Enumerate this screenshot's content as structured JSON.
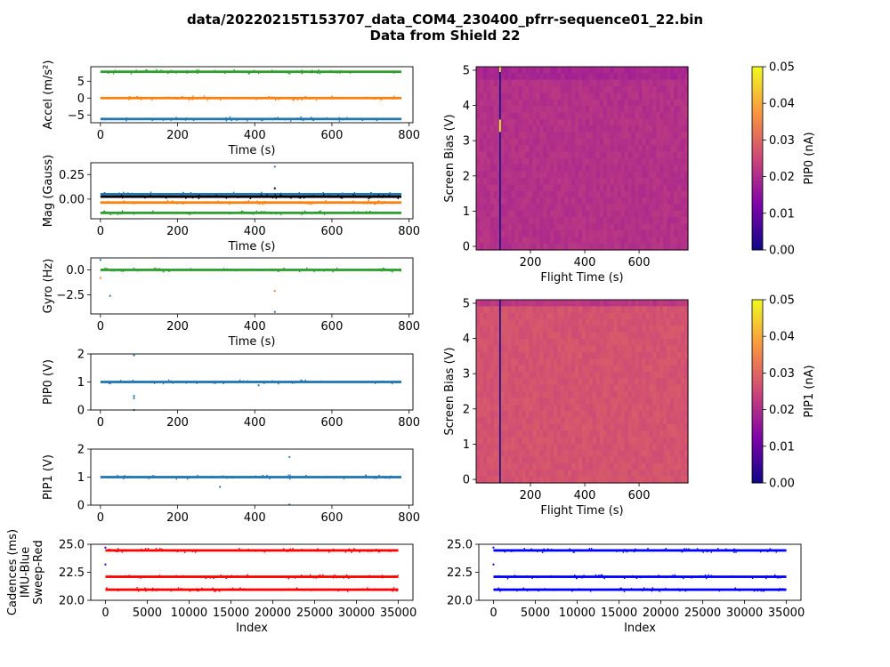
{
  "figure": {
    "title_line1": "data/20220215T153707_data_COM4_230400_pfrr-sequence01_22.bin",
    "title_line2": "Data from Shield 22"
  },
  "colors": {
    "c0": "#1f77b4",
    "c1": "#ff7f0e",
    "c2": "#2ca02c",
    "red": "#ff0000",
    "blue": "#0000ff",
    "dark": "#000000"
  },
  "chart_data": [
    {
      "id": "accel",
      "type": "scatter",
      "title": "",
      "xlabel": "Time (s)",
      "ylabel": "Accel (m/s²)",
      "xlim": [
        -25,
        810
      ],
      "ylim": [
        -7.3,
        9.3
      ],
      "xticks": [
        0,
        200,
        400,
        600,
        800
      ],
      "yticks": [
        -5,
        0,
        5
      ],
      "series": [
        {
          "color": "c0",
          "level": -6.2,
          "x_range": [
            0,
            780
          ]
        },
        {
          "color": "c1",
          "level": 0.0,
          "x_range": [
            0,
            780
          ]
        },
        {
          "color": "c2",
          "level": 7.8,
          "x_range": [
            0,
            780
          ]
        }
      ],
      "points": [
        {
          "x": 500,
          "y": -0.6,
          "color": "c1"
        },
        {
          "x": 385,
          "y": 7.3,
          "color": "c2"
        },
        {
          "x": 398,
          "y": 8.1,
          "color": "c2"
        }
      ]
    },
    {
      "id": "mag",
      "type": "scatter",
      "title": "",
      "xlabel": "Time (s)",
      "ylabel": "Mag (Gauss)",
      "xlim": [
        -25,
        810
      ],
      "ylim": [
        -0.2,
        0.37
      ],
      "xticks": [
        0,
        200,
        400,
        600,
        800
      ],
      "yticks": [
        0.0,
        0.25
      ],
      "ytick_labels": [
        "0.00",
        "0.25"
      ],
      "series": [
        {
          "color": "c0",
          "level": 0.05,
          "x_range": [
            0,
            780
          ]
        },
        {
          "color": "dark",
          "level": 0.025,
          "x_range": [
            0,
            780
          ]
        },
        {
          "color": "c1",
          "level": -0.035,
          "x_range": [
            0,
            780
          ]
        },
        {
          "color": "c2",
          "level": -0.14,
          "x_range": [
            0,
            780
          ]
        }
      ],
      "points": [
        {
          "x": 452,
          "y": 0.33,
          "color": "c0"
        },
        {
          "x": 452,
          "y": 0.11,
          "color": "dark"
        }
      ]
    },
    {
      "id": "gyro",
      "type": "scatter",
      "title": "",
      "xlabel": "Time (s)",
      "ylabel": "Gyro (Hz)",
      "xlim": [
        -25,
        810
      ],
      "ylim": [
        -4.4,
        1.2
      ],
      "xticks": [
        0,
        200,
        400,
        600,
        800
      ],
      "yticks": [
        -2.5,
        0.0
      ],
      "ytick_labels": [
        "−2.5",
        "0.0"
      ],
      "series": [
        {
          "color": "c2",
          "level": 0.0,
          "x_range": [
            0,
            780
          ]
        }
      ],
      "points": [
        {
          "x": 0,
          "y": 1.0,
          "color": "c0"
        },
        {
          "x": 0,
          "y": -0.8,
          "color": "c1"
        },
        {
          "x": 25,
          "y": -2.6,
          "color": "c0"
        },
        {
          "x": 452,
          "y": -2.1,
          "color": "c1"
        },
        {
          "x": 452,
          "y": -4.2,
          "color": "c0"
        }
      ]
    },
    {
      "id": "pip0v",
      "type": "scatter",
      "title": "",
      "xlabel": "",
      "ylabel": "PIP0 (V)",
      "xlim": [
        -25,
        810
      ],
      "ylim": [
        0,
        2
      ],
      "xticks": [
        0,
        200,
        400,
        600,
        800
      ],
      "yticks": [
        0,
        1,
        2
      ],
      "series": [
        {
          "color": "c0",
          "level": 1.0,
          "x_range": [
            0,
            780
          ]
        }
      ],
      "points": [
        {
          "x": 87,
          "y": 1.95,
          "color": "c0"
        },
        {
          "x": 87,
          "y": 0.5,
          "color": "c0"
        },
        {
          "x": 87,
          "y": 0.42,
          "color": "c0"
        },
        {
          "x": 87,
          "y": 0.0,
          "color": "c0"
        },
        {
          "x": 410,
          "y": 0.88,
          "color": "c0"
        }
      ]
    },
    {
      "id": "pip1v",
      "type": "scatter",
      "title": "",
      "xlabel": "",
      "ylabel": "PIP1 (V)",
      "xlim": [
        -25,
        810
      ],
      "ylim": [
        0,
        2
      ],
      "xticks": [
        0,
        200,
        400,
        600,
        800
      ],
      "yticks": [
        0,
        1,
        2
      ],
      "series": [
        {
          "color": "c0",
          "level": 1.0,
          "x_range": [
            0,
            780
          ]
        }
      ],
      "points": [
        {
          "x": 490,
          "y": 1.72,
          "color": "c0"
        },
        {
          "x": 310,
          "y": 0.65,
          "color": "c0"
        },
        {
          "x": 490,
          "y": 0.02,
          "color": "c0"
        }
      ]
    },
    {
      "id": "cad_red",
      "type": "scatter",
      "title": "",
      "xlabel": "Index",
      "ylabel_lines": [
        "Cadences (ms)",
        "IMU-Blue",
        "Sweep-Red"
      ],
      "xlim": [
        -1750,
        36750
      ],
      "ylim": [
        20,
        25
      ],
      "xticks": [
        0,
        5000,
        10000,
        15000,
        20000,
        25000,
        30000,
        35000
      ],
      "yticks": [
        20.0,
        22.5,
        25.0
      ],
      "ytick_labels": [
        "20.0",
        "22.5",
        "25.0"
      ],
      "series": [
        {
          "color": "red",
          "level": 24.45,
          "x_range": [
            0,
            35000
          ]
        },
        {
          "color": "red",
          "level": 22.1,
          "x_range": [
            0,
            35000
          ]
        },
        {
          "color": "red",
          "level": 20.95,
          "x_range": [
            0,
            35000
          ]
        }
      ],
      "points": [
        {
          "x": 0,
          "y": 24.7,
          "color": "blue"
        },
        {
          "x": 0,
          "y": 23.2,
          "color": "blue"
        }
      ]
    },
    {
      "id": "cad_blue",
      "type": "scatter",
      "title": "",
      "xlabel": "Index",
      "ylabel": "",
      "xlim": [
        -1750,
        36750
      ],
      "ylim": [
        20,
        25
      ],
      "xticks": [
        0,
        5000,
        10000,
        15000,
        20000,
        25000,
        30000,
        35000
      ],
      "yticks": [
        20.0,
        22.5,
        25.0
      ],
      "ytick_labels": [
        "20.0",
        "22.5",
        "25.0"
      ],
      "series": [
        {
          "color": "blue",
          "level": 24.45,
          "x_range": [
            0,
            35000
          ]
        },
        {
          "color": "blue",
          "level": 22.1,
          "x_range": [
            0,
            35000
          ]
        },
        {
          "color": "blue",
          "level": 20.95,
          "x_range": [
            0,
            35000
          ]
        }
      ],
      "points": [
        {
          "x": 0,
          "y": 24.7,
          "color": "blue"
        },
        {
          "x": 0,
          "y": 23.2,
          "color": "blue"
        }
      ]
    },
    {
      "id": "heat0",
      "type": "heatmap",
      "xlabel": "Flight Time (s)",
      "ylabel": "Screen Bias (V)",
      "colorbar_label": "PIP0 (nA)",
      "colormap": "plasma",
      "xlim": [
        0,
        780
      ],
      "ylim": [
        -0.1,
        5.1
      ],
      "xticks": [
        200,
        400,
        600
      ],
      "yticks": [
        0,
        1,
        2,
        3,
        4,
        5
      ],
      "clim": [
        0,
        0.05
      ],
      "cticks": [
        0.0,
        0.01,
        0.02,
        0.03,
        0.04,
        0.05
      ],
      "ctick_labels": [
        "0.00",
        "0.01",
        "0.02",
        "0.03",
        "0.04",
        "0.05"
      ],
      "base_value": 0.021,
      "top_band_value": 0.019,
      "top_band_from": 4.7,
      "dark_column_x": 88,
      "bright_spots": [
        {
          "x": 88,
          "y_from": 3.25,
          "y_to": 3.6
        },
        {
          "x": 88,
          "y_from": 4.95,
          "y_to": 5.1
        }
      ]
    },
    {
      "id": "heat1",
      "type": "heatmap",
      "xlabel": "Flight Time (s)",
      "ylabel": "Screen Bias (V)",
      "colorbar_label": "PIP1 (nA)",
      "colormap": "plasma",
      "xlim": [
        0,
        780
      ],
      "ylim": [
        -0.1,
        5.1
      ],
      "xticks": [
        200,
        400,
        600
      ],
      "yticks": [
        0,
        1,
        2,
        3,
        4,
        5
      ],
      "clim": [
        0,
        0.05
      ],
      "cticks": [
        0.0,
        0.01,
        0.02,
        0.03,
        0.04,
        0.05
      ],
      "ctick_labels": [
        "0.00",
        "0.01",
        "0.02",
        "0.03",
        "0.04",
        "0.05"
      ],
      "base_value": 0.027,
      "top_band_value": 0.022,
      "top_band_from": 4.85,
      "dark_column_x": 88,
      "bright_spots": []
    }
  ]
}
